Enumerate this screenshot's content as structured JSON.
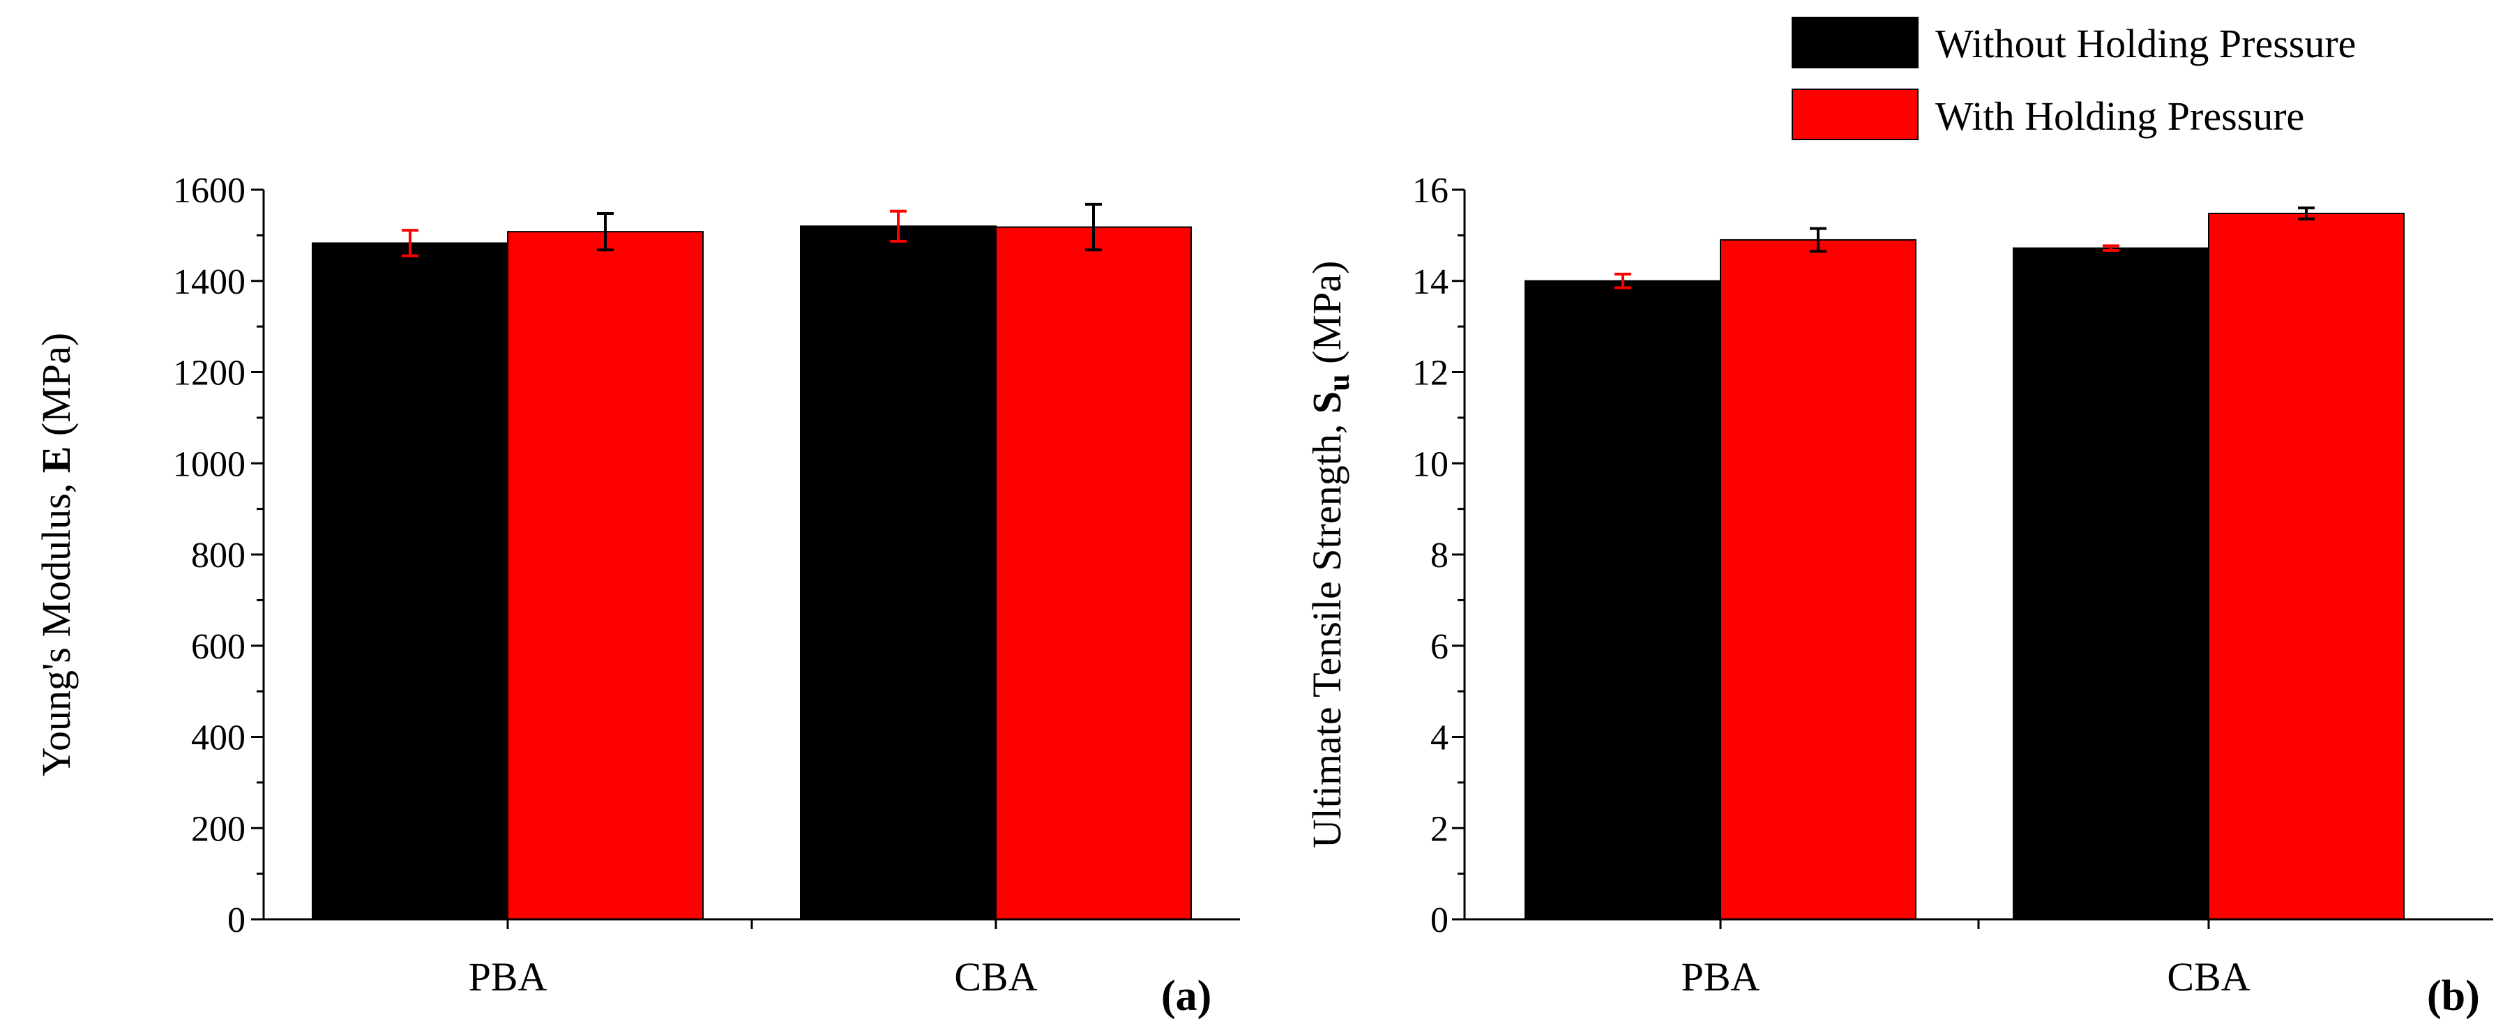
{
  "legend": [
    {
      "label": "Without Holding Pressure",
      "color": "#000000"
    },
    {
      "label": "With Holding Pressure",
      "color": "#ff0000"
    }
  ],
  "chart_data": [
    {
      "type": "bar",
      "panel_label": "(a)",
      "categories": [
        "PBA",
        "CBA"
      ],
      "series": [
        {
          "name": "Without Holding Pressure",
          "color": "#000000",
          "error_color": "#ff0000",
          "values": [
            1483,
            1520
          ],
          "errors": [
            28,
            33
          ]
        },
        {
          "name": "With Holding Pressure",
          "color": "#ff0000",
          "error_color": "#000000",
          "values": [
            1508,
            1518
          ],
          "errors": [
            40,
            50
          ]
        }
      ],
      "ylabel": {
        "prefix": "Young's Modulus, ",
        "bold": "E",
        "suffix": " (MPa)"
      },
      "ylim": [
        0,
        1600
      ],
      "yticks": [
        0,
        200,
        400,
        600,
        800,
        1000,
        1200,
        1400,
        1600
      ],
      "ytick_labels": [
        "0",
        "200",
        "400",
        "600",
        "800",
        "1000",
        "1200",
        "1400",
        "1600"
      ]
    },
    {
      "type": "bar",
      "panel_label": "(b)",
      "categories": [
        "PBA",
        "CBA"
      ],
      "series": [
        {
          "name": "Without Holding Pressure",
          "color": "#000000",
          "error_color": "#ff0000",
          "values": [
            14.0,
            14.72
          ],
          "errors": [
            0.15,
            0.05
          ]
        },
        {
          "name": "With Holding Pressure",
          "color": "#ff0000",
          "error_color": "#000000",
          "values": [
            14.9,
            15.48
          ],
          "errors": [
            0.25,
            0.12
          ]
        }
      ],
      "ylabel": {
        "prefix": "Ultimate Tensile Strength, ",
        "bold": "S",
        "sub": "u",
        "suffix": " (MPa)"
      },
      "ylim": [
        0,
        16
      ],
      "yticks": [
        0,
        2,
        4,
        6,
        8,
        10,
        12,
        14,
        16
      ],
      "ytick_labels": [
        "0",
        "2",
        "4",
        "6",
        "8",
        "10",
        "12",
        "14",
        "16"
      ]
    }
  ]
}
